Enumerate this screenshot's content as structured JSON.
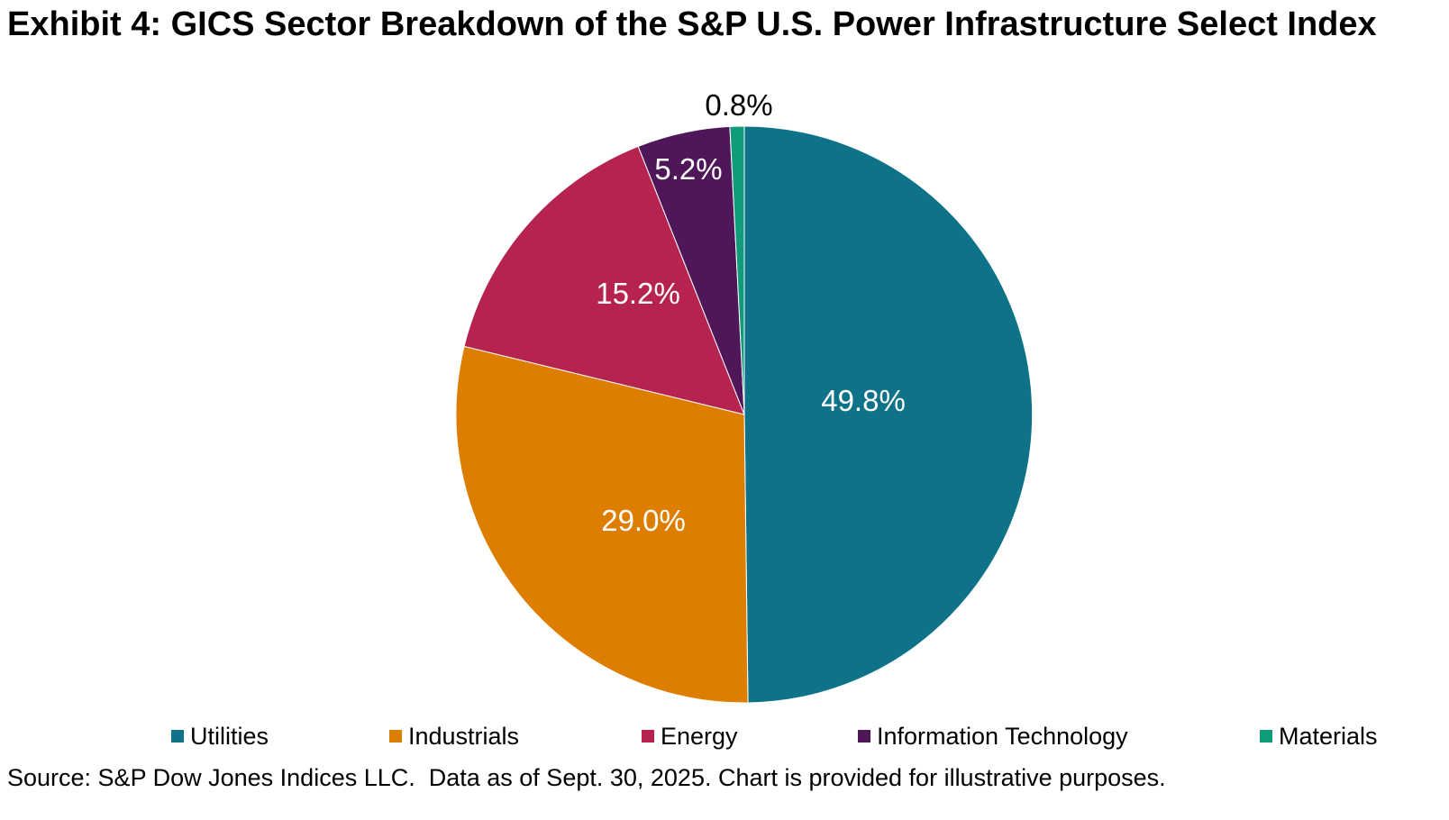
{
  "title": "Exhibit 4: GICS Sector Breakdown of the S&P U.S. Power Infrastructure Select Index",
  "source_note": "Source: S&P Dow Jones Indices LLC.  Data as of Sept. 30, 2025. Chart is provided for illustrative purposes.",
  "chart_data": {
    "type": "pie",
    "title": "Exhibit 4: GICS Sector Breakdown of the S&P U.S. Power Infrastructure Select Index",
    "categories": [
      "Utilities",
      "Industrials",
      "Energy",
      "Information Technology",
      "Materials"
    ],
    "values": [
      49.8,
      29.0,
      15.2,
      5.2,
      0.8
    ],
    "labels": [
      "49.8%",
      "29.0%",
      "15.2%",
      "5.2%",
      "0.8%"
    ],
    "colors": [
      "#0e7288",
      "#de7e00",
      "#b6234f",
      "#4f165a",
      "#109b7b"
    ],
    "label_colors": [
      "#ffffff",
      "#ffffff",
      "#ffffff",
      "#ffffff",
      "#000000"
    ],
    "start_angle_deg": 0,
    "direction": "clockwise",
    "legend_position": "bottom",
    "source": "Source: S&P Dow Jones Indices LLC.  Data as of Sept. 30, 2025. Chart is provided for illustrative purposes."
  }
}
